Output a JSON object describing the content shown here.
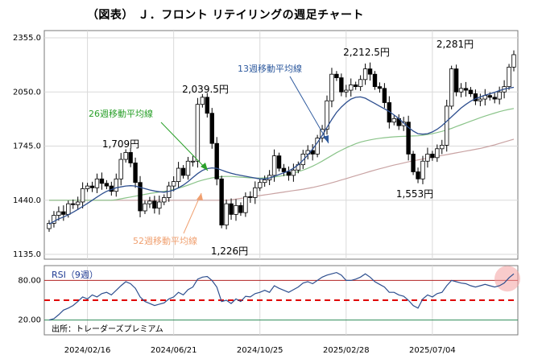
{
  "title": "（図表） Ｊ．フロント リテイリングの週足チャート",
  "chart_data": [
    {
      "type": "candlestick",
      "panel": "price",
      "y_ticks": [
        "2355.0",
        "2050.0",
        "1745.0",
        "1440.0",
        "1135.0"
      ],
      "ylim": [
        1135,
        2355
      ],
      "x_ticks": [
        "2024/02/16",
        "2024/06/21",
        "2024/10/25",
        "2025/02/28",
        "2025/07/04"
      ],
      "annotations": [
        {
          "text": "1,709円"
        },
        {
          "text": "2,039.5円"
        },
        {
          "text": "1,226円"
        },
        {
          "text": "2,212.5円"
        },
        {
          "text": "1,553円"
        },
        {
          "text": "2,281円"
        }
      ],
      "ma_labels": {
        "ma13": "13週移動平均線",
        "ma26": "26週移動平均線",
        "ma52": "52週移動平均線"
      },
      "colors": {
        "up": "#ffffff",
        "down": "#000000",
        "ma13": "#2e4f8f",
        "ma26": "#8bc48a",
        "ma52": "#c9a3a3",
        "ma13_label": "#2e5a9e",
        "ma26_label": "#2aa02a",
        "ma52_label": "#f0a070"
      },
      "closes": [
        1310,
        1355,
        1375,
        1360,
        1420,
        1415,
        1430,
        1505,
        1520,
        1510,
        1560,
        1535,
        1520,
        1490,
        1560,
        1670,
        1709,
        1650,
        1540,
        1380,
        1420,
        1435,
        1395,
        1430,
        1455,
        1520,
        1545,
        1620,
        1580,
        1660,
        1660,
        1980,
        2020,
        1930,
        1760,
        1560,
        1300,
        1420,
        1360,
        1410,
        1370,
        1460,
        1455,
        1510,
        1540,
        1555,
        1580,
        1690,
        1620,
        1600,
        1580,
        1610,
        1640,
        1700,
        1720,
        1700,
        1790,
        1840,
        2000,
        2150,
        2130,
        2050,
        2060,
        2090,
        2080,
        2120,
        2180,
        2150,
        2080,
        2070,
        1990,
        1880,
        1900,
        1860,
        1880,
        1700,
        1600,
        1560,
        1660,
        1700,
        1680,
        1730,
        1750,
        1970,
        2180,
        2050,
        2070,
        2060,
        2040,
        2000,
        2010,
        2030,
        2020,
        2010,
        2050,
        2080,
        2190,
        2260
      ],
      "ma13": [
        1305,
        1320,
        1335,
        1345,
        1358,
        1372,
        1388,
        1405,
        1422,
        1440,
        1458,
        1475,
        1490,
        1500,
        1510,
        1515,
        1520,
        1522,
        1520,
        1512,
        1505,
        1498,
        1492,
        1488,
        1485,
        1490,
        1497,
        1510,
        1525,
        1545,
        1568,
        1590,
        1608,
        1618,
        1622,
        1620,
        1610,
        1600,
        1592,
        1585,
        1580,
        1575,
        1570,
        1565,
        1560,
        1560,
        1565,
        1575,
        1585,
        1595,
        1605,
        1620,
        1640,
        1665,
        1695,
        1728,
        1765,
        1805,
        1850,
        1895,
        1935,
        1965,
        1990,
        2010,
        2020,
        2022,
        2015,
        2000,
        1985,
        1970,
        1955,
        1940,
        1920,
        1900,
        1875,
        1850,
        1830,
        1815,
        1812,
        1815,
        1825,
        1840,
        1860,
        1885,
        1910,
        1935,
        1960,
        1980,
        1998,
        2012,
        2022,
        2032,
        2040,
        2048,
        2058,
        2066,
        2072,
        2076
      ],
      "ma26": [
        1440,
        1440,
        1440,
        1440,
        1440,
        1440,
        1440,
        1440,
        1440,
        1440,
        1440,
        1440,
        1440,
        1440,
        1443,
        1448,
        1453,
        1458,
        1463,
        1468,
        1473,
        1478,
        1482,
        1486,
        1490,
        1495,
        1500,
        1508,
        1516,
        1525,
        1535,
        1545,
        1553,
        1560,
        1566,
        1570,
        1573,
        1574,
        1574,
        1572,
        1570,
        1568,
        1566,
        1565,
        1565,
        1566,
        1568,
        1571,
        1575,
        1580,
        1586,
        1593,
        1601,
        1610,
        1620,
        1632,
        1645,
        1660,
        1676,
        1692,
        1708,
        1722,
        1735,
        1747,
        1758,
        1767,
        1774,
        1780,
        1785,
        1789,
        1792,
        1795,
        1797,
        1799,
        1800,
        1801,
        1802,
        1803,
        1806,
        1810,
        1815,
        1821,
        1828,
        1836,
        1845,
        1855,
        1865,
        1875,
        1885,
        1895,
        1905,
        1914,
        1923,
        1931,
        1939,
        1946,
        1952,
        1957
      ],
      "ma52": [
        1440,
        1440,
        1440,
        1440,
        1440,
        1440,
        1440,
        1440,
        1440,
        1440,
        1440,
        1440,
        1440,
        1440,
        1440,
        1440,
        1440,
        1440,
        1440,
        1440,
        1440,
        1440,
        1440,
        1440,
        1440,
        1440,
        1440,
        1440,
        1440,
        1440,
        1440,
        1440,
        1440,
        1440,
        1440,
        1440,
        1440,
        1440,
        1442,
        1446,
        1450,
        1454,
        1458,
        1462,
        1466,
        1470,
        1474,
        1478,
        1482,
        1486,
        1490,
        1494,
        1498,
        1502,
        1507,
        1512,
        1518,
        1524,
        1531,
        1538,
        1546,
        1554,
        1562,
        1570,
        1578,
        1586,
        1594,
        1602,
        1610,
        1617,
        1624,
        1631,
        1638,
        1644,
        1650,
        1656,
        1662,
        1667,
        1672,
        1677,
        1682,
        1687,
        1692,
        1697,
        1702,
        1707,
        1712,
        1717,
        1722,
        1727,
        1732,
        1738,
        1745,
        1752,
        1760,
        1768,
        1776,
        1784
      ]
    },
    {
      "type": "line",
      "panel": "rsi",
      "title": "RSI（9週）",
      "y_ticks": [
        "80.00",
        "20.00"
      ],
      "ylim": [
        0,
        100
      ],
      "reference_lines": [
        80,
        50,
        20
      ],
      "colors": {
        "line": "#2e4f8f",
        "upper": "#b22222",
        "mid": "#e00000",
        "lower": "#2e8b57",
        "highlight": "#f4a0a0"
      },
      "values": [
        20,
        22,
        28,
        35,
        38,
        42,
        48,
        55,
        52,
        58,
        55,
        60,
        62,
        58,
        65,
        72,
        78,
        75,
        68,
        55,
        48,
        45,
        42,
        44,
        46,
        52,
        55,
        62,
        58,
        66,
        70,
        82,
        85,
        86,
        80,
        70,
        48,
        50,
        45,
        52,
        48,
        56,
        55,
        60,
        62,
        65,
        62,
        72,
        68,
        65,
        62,
        66,
        70,
        76,
        78,
        75,
        80,
        85,
        88,
        90,
        92,
        88,
        80,
        80,
        82,
        85,
        90,
        85,
        78,
        74,
        70,
        62,
        62,
        58,
        56,
        50,
        42,
        38,
        52,
        58,
        55,
        60,
        62,
        72,
        80,
        78,
        76,
        75,
        72,
        70,
        72,
        74,
        72,
        70,
        72,
        76,
        84,
        90
      ],
      "source": "出所：トレーダーズプレミアム"
    }
  ]
}
